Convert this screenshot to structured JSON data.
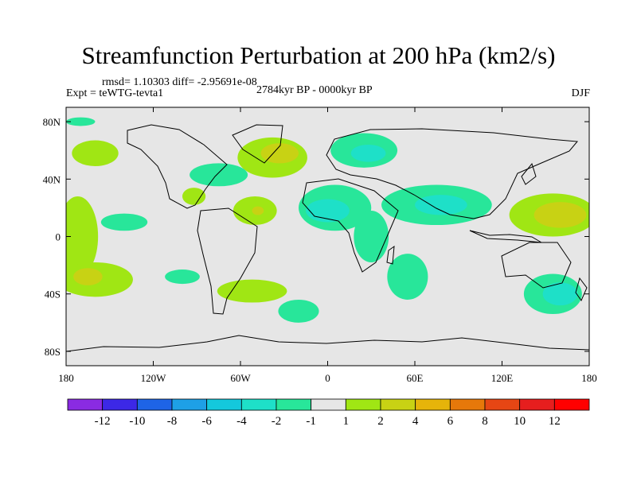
{
  "chart_data": {
    "type": "heatmap",
    "title": "Streamfunction Perturbation at 200 hPa (km2/s)",
    "stats": "rmsd= 1.10303 diff= -2.95691e-08",
    "experiment": "Expt = teWTG-tevta1",
    "period": "2784kyr BP - 0000kyr BP",
    "season": "DJF",
    "xlim": [
      -180,
      180
    ],
    "ylim": [
      -90,
      90
    ],
    "x_ticks": [
      {
        "value": -180,
        "label": "180"
      },
      {
        "value": -120,
        "label": "120W"
      },
      {
        "value": -60,
        "label": "60W"
      },
      {
        "value": 0,
        "label": "0"
      },
      {
        "value": 60,
        "label": "60E"
      },
      {
        "value": 120,
        "label": "120E"
      },
      {
        "value": 180,
        "label": "180"
      }
    ],
    "y_ticks": [
      {
        "value": 80,
        "label": "80N"
      },
      {
        "value": 40,
        "label": "40N"
      },
      {
        "value": 0,
        "label": "0"
      },
      {
        "value": -40,
        "label": "40S"
      },
      {
        "value": -80,
        "label": "80S"
      }
    ],
    "colorbar": {
      "levels": [
        "-12",
        "-10",
        "-8",
        "-6",
        "-4",
        "-2",
        "-1",
        "1",
        "2",
        "4",
        "6",
        "8",
        "10",
        "12"
      ],
      "colors": [
        "#8a2be2",
        "#3c28e6",
        "#1e64e6",
        "#1ea0e6",
        "#14c8dc",
        "#1ee0c8",
        "#28e69a",
        "#e6e6e6",
        "#a0e614",
        "#c8d214",
        "#e6b40a",
        "#e6780a",
        "#e64614",
        "#e61e1e",
        "#ff0000"
      ]
    },
    "anomaly_regions": [
      {
        "name": "north-atlantic-positive",
        "lon": -38,
        "lat": 55,
        "rlon": 24,
        "rlat": 14,
        "value": 1.5
      },
      {
        "name": "north-atlantic-core",
        "lon": -33,
        "lat": 58,
        "rlon": 13,
        "rlat": 7,
        "value": 3
      },
      {
        "name": "north-pacific-positive",
        "lon": -160,
        "lat": 58,
        "rlon": 16,
        "rlat": 9,
        "value": 1.5
      },
      {
        "name": "north-america-negative",
        "lon": -75,
        "lat": 43,
        "rlon": 20,
        "rlat": 8,
        "value": -1.5
      },
      {
        "name": "gulf-positive",
        "lon": -92,
        "lat": 28,
        "rlon": 8,
        "rlat": 6,
        "value": 1.5
      },
      {
        "name": "caribbean-positive",
        "lon": -50,
        "lat": 18,
        "rlon": 15,
        "rlat": 10,
        "value": 1.5
      },
      {
        "name": "caribbean-core",
        "lon": -48,
        "lat": 18,
        "rlon": 4,
        "rlat": 3,
        "value": 3
      },
      {
        "name": "europe-negative",
        "lon": 25,
        "lat": 60,
        "rlon": 23,
        "rlat": 12,
        "value": -1.5
      },
      {
        "name": "europe-core",
        "lon": 28,
        "lat": 58,
        "rlon": 12,
        "rlat": 6,
        "value": -3
      },
      {
        "name": "north-africa-negative",
        "lon": 5,
        "lat": 20,
        "rlon": 25,
        "rlat": 16,
        "value": -1.5
      },
      {
        "name": "north-africa-core",
        "lon": 0,
        "lat": 18,
        "rlon": 15,
        "rlat": 8,
        "value": -3
      },
      {
        "name": "asia-negative",
        "lon": 75,
        "lat": 22,
        "rlon": 38,
        "rlat": 14,
        "value": -1.5
      },
      {
        "name": "asia-core",
        "lon": 78,
        "lat": 22,
        "rlon": 18,
        "rlat": 7,
        "value": -3
      },
      {
        "name": "east-africa-negative",
        "lon": 30,
        "lat": 0,
        "rlon": 12,
        "rlat": 18,
        "value": -1.5
      },
      {
        "name": "south-indian-negative",
        "lon": 55,
        "lat": -28,
        "rlon": 14,
        "rlat": 16,
        "value": -1.5
      },
      {
        "name": "west-pacific-positive",
        "lon": 155,
        "lat": 15,
        "rlon": 30,
        "rlat": 15,
        "value": 1.5
      },
      {
        "name": "west-pacific-core",
        "lon": 160,
        "lat": 15,
        "rlon": 18,
        "rlat": 9,
        "value": 3
      },
      {
        "name": "east-pacific-positive",
        "lon": -172,
        "lat": 0,
        "rlon": 14,
        "rlat": 28,
        "value": 1.5
      },
      {
        "name": "south-pacific-positive",
        "lon": -160,
        "lat": -30,
        "rlon": 26,
        "rlat": 12,
        "value": 1.5
      },
      {
        "name": "south-pacific-core",
        "lon": -165,
        "lat": -28,
        "rlon": 10,
        "rlat": 6,
        "value": 3
      },
      {
        "name": "pacific-negative",
        "lon": -140,
        "lat": 10,
        "rlon": 16,
        "rlat": 6,
        "value": -1.5
      },
      {
        "name": "south-pacific-negative",
        "lon": -100,
        "lat": -28,
        "rlon": 12,
        "rlat": 5,
        "value": -1.5
      },
      {
        "name": "south-america-positive",
        "lon": -52,
        "lat": -38,
        "rlon": 24,
        "rlat": 8,
        "value": 1.5
      },
      {
        "name": "south-atlantic-negative",
        "lon": -20,
        "lat": -52,
        "rlon": 14,
        "rlat": 8,
        "value": -1.5
      },
      {
        "name": "australia-negative",
        "lon": 155,
        "lat": -40,
        "rlon": 20,
        "rlat": 14,
        "value": -1.5
      },
      {
        "name": "australia-core",
        "lon": 160,
        "lat": -40,
        "rlon": 12,
        "rlat": 8,
        "value": -3
      },
      {
        "name": "pacific-northwest-negative",
        "lon": -170,
        "lat": 80,
        "rlon": 10,
        "rlat": 3,
        "value": -1.5
      }
    ]
  }
}
